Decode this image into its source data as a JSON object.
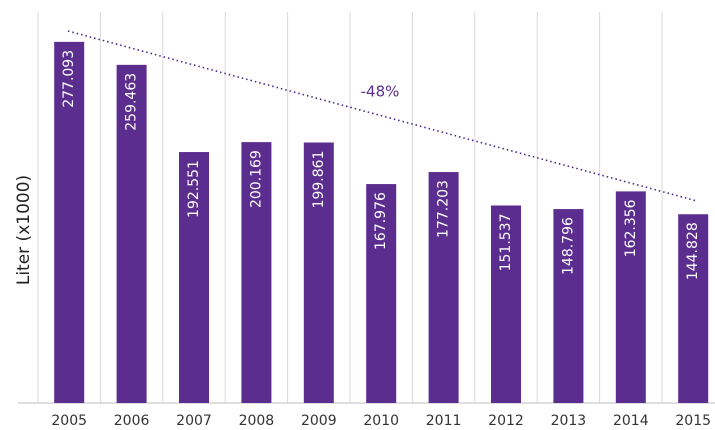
{
  "chart_data": {
    "type": "bar",
    "y_label": "Liter (x1000)",
    "annotation": "-48%",
    "categories": [
      "2005",
      "2006",
      "2007",
      "2008",
      "2009",
      "2010",
      "2011",
      "2012",
      "2013",
      "2014",
      "2015"
    ],
    "values": [
      277.093,
      259.463,
      192.551,
      200.169,
      199.861,
      167.976,
      177.203,
      151.537,
      148.796,
      162.356,
      144.828
    ],
    "color": "#5b2d8e",
    "ylim": [
      0,
      300
    ],
    "grid": true
  }
}
